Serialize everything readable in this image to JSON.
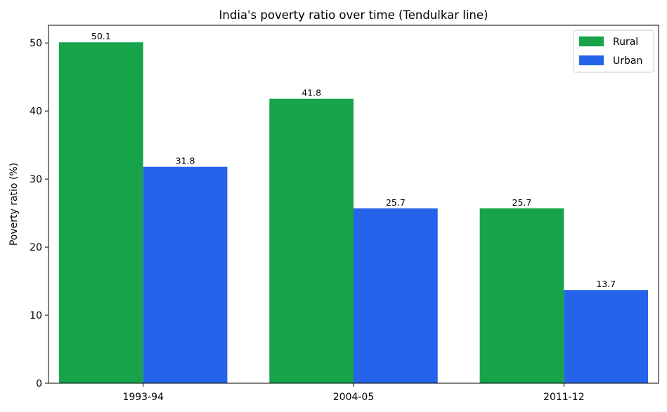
{
  "chart_data": {
    "type": "bar",
    "title": "India's poverty ratio over time (Tendulkar line)",
    "xlabel": "",
    "ylabel": "Poverty ratio (%)",
    "categories": [
      "1993-94",
      "2004-05",
      "2011-12"
    ],
    "series": [
      {
        "name": "Rural",
        "values": [
          50.1,
          41.8,
          25.7
        ],
        "color": "#16a34a"
      },
      {
        "name": "Urban",
        "values": [
          31.8,
          25.7,
          13.7
        ],
        "color": "#2563eb"
      }
    ],
    "ylim": [
      0,
      52.6
    ],
    "yticks": [
      0,
      10,
      20,
      30,
      40,
      50
    ],
    "grid": false,
    "legend_position": "top-right",
    "data_labels": [
      [
        "50.1",
        "41.8",
        "25.7"
      ],
      [
        "31.8",
        "25.7",
        "13.7"
      ]
    ]
  }
}
